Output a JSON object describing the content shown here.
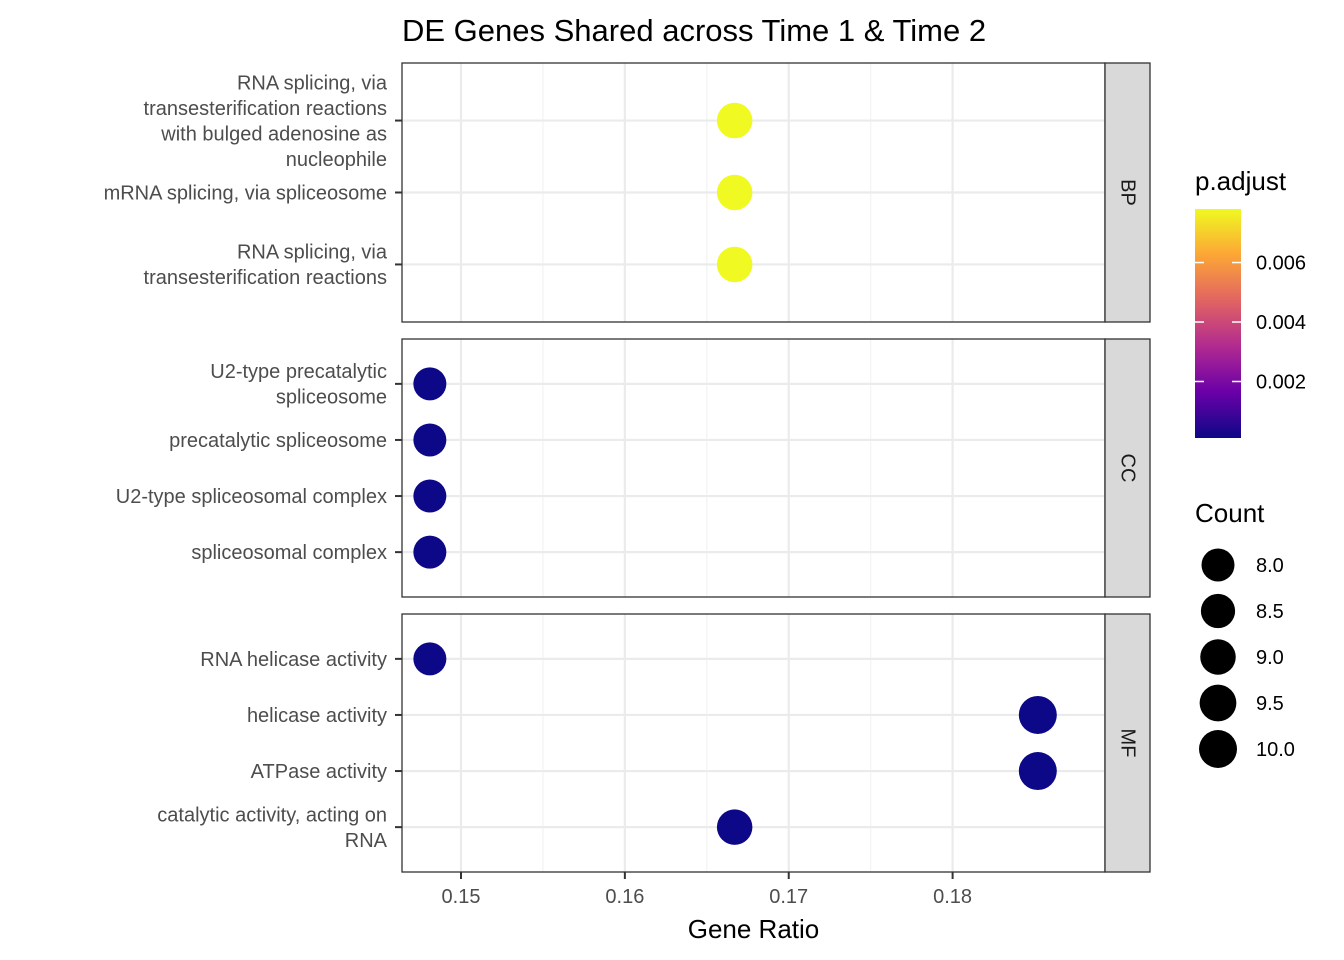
{
  "chart_data": {
    "type": "scatter",
    "title": "DE Genes Shared across Time 1 & Time 2",
    "xlabel": "Gene Ratio",
    "ylabel": "",
    "xlim": [
      0.1464,
      0.1893
    ],
    "xticks": [
      0.15,
      0.16,
      0.17,
      0.18
    ],
    "xtick_labels": [
      "0.15",
      "0.16",
      "0.17",
      "0.18"
    ],
    "grid": true,
    "panels": [
      {
        "name": "BP",
        "terms": [
          {
            "label": [
              "RNA splicing, via",
              "transesterification reactions",
              "with bulged adenosine as",
              "nucleophile"
            ],
            "gene_ratio": 0.1667,
            "p_adjust": 0.0078,
            "count": 9
          },
          {
            "label": [
              "mRNA splicing, via spliceosome"
            ],
            "gene_ratio": 0.1667,
            "p_adjust": 0.0078,
            "count": 9
          },
          {
            "label": [
              "RNA splicing, via",
              "transesterification reactions"
            ],
            "gene_ratio": 0.1667,
            "p_adjust": 0.0078,
            "count": 9
          }
        ]
      },
      {
        "name": "CC",
        "terms": [
          {
            "label": [
              "U2-type precatalytic",
              "spliceosome"
            ],
            "gene_ratio": 0.1481,
            "p_adjust": 0.0001,
            "count": 8
          },
          {
            "label": [
              "precatalytic spliceosome"
            ],
            "gene_ratio": 0.1481,
            "p_adjust": 0.0001,
            "count": 8
          },
          {
            "label": [
              "U2-type spliceosomal complex"
            ],
            "gene_ratio": 0.1481,
            "p_adjust": 0.0001,
            "count": 8
          },
          {
            "label": [
              "spliceosomal complex"
            ],
            "gene_ratio": 0.1481,
            "p_adjust": 0.0001,
            "count": 8
          }
        ]
      },
      {
        "name": "MF",
        "terms": [
          {
            "label": [
              "RNA helicase activity"
            ],
            "gene_ratio": 0.1481,
            "p_adjust": 0.0001,
            "count": 8
          },
          {
            "label": [
              "helicase activity"
            ],
            "gene_ratio": 0.1852,
            "p_adjust": 0.0001,
            "count": 10
          },
          {
            "label": [
              "ATPase activity"
            ],
            "gene_ratio": 0.1852,
            "p_adjust": 0.0001,
            "count": 10
          },
          {
            "label": [
              "catalytic activity, acting on",
              "RNA"
            ],
            "gene_ratio": 0.1667,
            "p_adjust": 0.0001,
            "count": 9
          }
        ]
      }
    ],
    "color_legend": {
      "title": "p.adjust",
      "range": [
        0.0001,
        0.0078
      ],
      "ticks": [
        0.002,
        0.004,
        0.006
      ],
      "tick_labels": [
        "0.002",
        "0.004",
        "0.006"
      ],
      "colors": [
        "#0d0887",
        "#6a00a8",
        "#b12a90",
        "#e16462",
        "#fca636",
        "#f0f921"
      ]
    },
    "size_legend": {
      "title": "Count",
      "values": [
        8.0,
        8.5,
        9.0,
        9.5,
        10.0
      ],
      "labels": [
        "8.0",
        "8.5",
        "9.0",
        "9.5",
        "10.0"
      ]
    },
    "legend_position": "right"
  }
}
